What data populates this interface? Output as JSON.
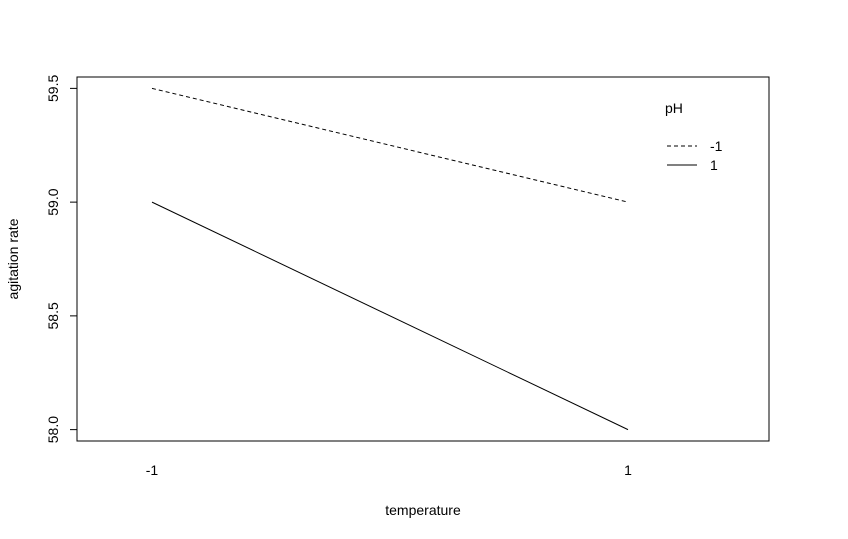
{
  "chart_data": {
    "type": "line",
    "xlabel": "temperature",
    "ylabel": "agitation rate",
    "x_categories": [
      "-1",
      "1"
    ],
    "ylim": [
      57.95,
      59.55
    ],
    "yticks": [
      "58.0",
      "58.5",
      "59.0",
      "59.5"
    ],
    "legend": {
      "title": "pH",
      "placement": "top-right"
    },
    "series": [
      {
        "name": "-1",
        "line_style": "dashed",
        "values": [
          59.5,
          59.0
        ]
      },
      {
        "name": "1",
        "line_style": "solid",
        "values": [
          59.0,
          58.0
        ]
      }
    ],
    "grid": false,
    "colors": {
      "line": "#000000",
      "frame": "#000000",
      "background": "#ffffff"
    }
  }
}
